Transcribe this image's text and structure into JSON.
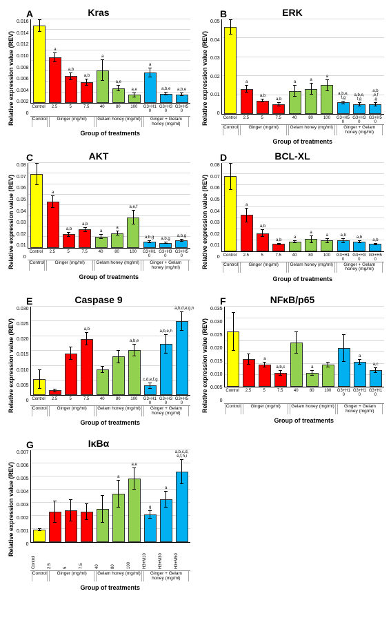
{
  "ylabel": "Relative expression value (REV)",
  "xlabel": "Group of treatments",
  "colors": {
    "control": "#ffff00",
    "ginger": "#ff0000",
    "honey": "#92d050",
    "combo": "#00b0f0",
    "grid": "#d9d9d9"
  },
  "groups": {
    "A": [
      {
        "label": "Control",
        "span": 1
      },
      {
        "label": "Ginger (mg/ml)",
        "span": 3
      },
      {
        "label": "Gelam honey (mg/ml)",
        "span": 3
      },
      {
        "label": "Ginger + Gelam honey\n(mg/ml)",
        "span": 3
      }
    ],
    "G": [
      {
        "label": "Control",
        "span": 1
      },
      {
        "label": "Ginger (mg/ml)",
        "span": 3
      },
      {
        "label": "Gelam honey (mg/ml)",
        "span": 3
      },
      {
        "label": "Ginger + Gelam honey (mg/ml)",
        "span": 3
      }
    ]
  },
  "charts": [
    {
      "id": "A",
      "letter": "A",
      "title": "Kras",
      "ymax": 0.016,
      "ystep": 0.002,
      "decimals": 3,
      "rot": false,
      "xticks": [
        "Control",
        "2.5",
        "5",
        "7.5",
        "40",
        "80",
        "100",
        "G3+H10",
        "G3+H30",
        "G3+H50"
      ],
      "bars": [
        {
          "v": 0.0128,
          "e": 0.001,
          "c": "control",
          "s": ""
        },
        {
          "v": 0.0075,
          "e": 0.0008,
          "c": "ginger",
          "s": "a"
        },
        {
          "v": 0.0044,
          "e": 0.0006,
          "c": "ginger",
          "s": "a,b"
        },
        {
          "v": 0.0034,
          "e": 0.0006,
          "c": "ginger",
          "s": "a,b"
        },
        {
          "v": 0.0054,
          "e": 0.0018,
          "c": "honey",
          "s": "a"
        },
        {
          "v": 0.0024,
          "e": 0.0005,
          "c": "honey",
          "s": "a,e"
        },
        {
          "v": 0.0013,
          "e": 0.0004,
          "c": "honey",
          "s": "a,e"
        },
        {
          "v": 0.005,
          "e": 0.0008,
          "c": "combo",
          "s": "a"
        },
        {
          "v": 0.0015,
          "e": 0.0003,
          "c": "combo",
          "s": "a,b,e"
        },
        {
          "v": 0.0014,
          "e": 0.0003,
          "c": "combo",
          "s": "a,b,e"
        }
      ]
    },
    {
      "id": "B",
      "letter": "B",
      "title": "ERK",
      "ymax": 0.05,
      "ystep": 0.01,
      "decimals": 2,
      "rot": false,
      "xticks": [
        "Control",
        "2.5",
        "5",
        "7.5",
        "40",
        "80",
        "100",
        "G3+H50",
        "G3+H30",
        "G3+H50"
      ],
      "bars": [
        {
          "v": 0.045,
          "e": 0.004,
          "c": "control",
          "s": ""
        },
        {
          "v": 0.013,
          "e": 0.002,
          "c": "ginger",
          "s": "a"
        },
        {
          "v": 0.007,
          "e": 0.001,
          "c": "ginger",
          "s": "a,b"
        },
        {
          "v": 0.005,
          "e": 0.001,
          "c": "ginger",
          "s": "a,b"
        },
        {
          "v": 0.012,
          "e": 0.003,
          "c": "honey",
          "s": "a"
        },
        {
          "v": 0.013,
          "e": 0.003,
          "c": "honey",
          "s": "a"
        },
        {
          "v": 0.015,
          "e": 0.003,
          "c": "honey",
          "s": "a"
        },
        {
          "v": 0.006,
          "e": 0.001,
          "c": "combo",
          "s": "a,b,e,\nf,g"
        },
        {
          "v": 0.005,
          "e": 0.001,
          "c": "combo",
          "s": "a,b,e,\nf,g"
        },
        {
          "v": 0.005,
          "e": 0.001,
          "c": "combo",
          "s": "a,b\n,e,f\n,g"
        }
      ]
    },
    {
      "id": "C",
      "letter": "C",
      "title": "AKT",
      "ymax": 0.08,
      "ystep": 0.01,
      "decimals": 2,
      "rot": false,
      "xticks": [
        "Control",
        "2.5",
        "5",
        "7.5",
        "40",
        "80",
        "100",
        "G3+H10",
        "G3+H30",
        "G3+H50"
      ],
      "bars": [
        {
          "v": 0.061,
          "e": 0.009,
          "c": "control",
          "s": ""
        },
        {
          "v": 0.038,
          "e": 0.005,
          "c": "ginger",
          "s": "a"
        },
        {
          "v": 0.011,
          "e": 0.002,
          "c": "ginger",
          "s": "a,b"
        },
        {
          "v": 0.015,
          "e": 0.002,
          "c": "ginger",
          "s": "a,b"
        },
        {
          "v": 0.009,
          "e": 0.002,
          "c": "honey",
          "s": "a"
        },
        {
          "v": 0.012,
          "e": 0.002,
          "c": "honey",
          "s": "a"
        },
        {
          "v": 0.025,
          "e": 0.006,
          "c": "honey",
          "s": "a,e,f"
        },
        {
          "v": 0.005,
          "e": 0.001,
          "c": "combo",
          "s": "a,b,g"
        },
        {
          "v": 0.004,
          "e": 0.001,
          "c": "combo",
          "s": "a,b,g"
        },
        {
          "v": 0.006,
          "e": 0.001,
          "c": "combo",
          "s": "a,b,g"
        }
      ]
    },
    {
      "id": "D",
      "letter": "D",
      "title": "BCL-XL",
      "ymax": 0.08,
      "ystep": 0.01,
      "decimals": 2,
      "rot": false,
      "xticks": [
        "Control",
        "2.5",
        "5",
        "7.5",
        "40",
        "80",
        "100",
        "G3+H10",
        "G3+H30",
        "G3+H50"
      ],
      "bars": [
        {
          "v": 0.062,
          "e": 0.011,
          "c": "control",
          "s": ""
        },
        {
          "v": 0.03,
          "e": 0.006,
          "c": "ginger",
          "s": "a"
        },
        {
          "v": 0.015,
          "e": 0.003,
          "c": "ginger",
          "s": "a,b"
        },
        {
          "v": 0.006,
          "e": 0.001,
          "c": "ginger",
          "s": "a,b"
        },
        {
          "v": 0.008,
          "e": 0.001,
          "c": "honey",
          "s": "a"
        },
        {
          "v": 0.01,
          "e": 0.003,
          "c": "honey",
          "s": "a"
        },
        {
          "v": 0.009,
          "e": 0.002,
          "c": "honey",
          "s": "a"
        },
        {
          "v": 0.009,
          "e": 0.002,
          "c": "combo",
          "s": "a,b"
        },
        {
          "v": 0.008,
          "e": 0.001,
          "c": "combo",
          "s": "a,b"
        },
        {
          "v": 0.006,
          "e": 0.001,
          "c": "combo",
          "s": "a,b"
        }
      ]
    },
    {
      "id": "E",
      "letter": "E",
      "title": "Caspase 9",
      "ymax": 0.03,
      "ystep": 0.005,
      "decimals": 3,
      "rot": false,
      "xticks": [
        "Control",
        "2.5",
        "5",
        "7.5",
        "40",
        "80",
        "100",
        "G3+H10",
        "G3+H30",
        "G3+H50"
      ],
      "bars": [
        {
          "v": 0.005,
          "e": 0.003,
          "c": "control",
          "s": ""
        },
        {
          "v": 0.0015,
          "e": 0.0005,
          "c": "ginger",
          "s": ""
        },
        {
          "v": 0.013,
          "e": 0.002,
          "c": "ginger",
          "s": ""
        },
        {
          "v": 0.0175,
          "e": 0.002,
          "c": "ginger",
          "s": "a,b"
        },
        {
          "v": 0.008,
          "e": 0.001,
          "c": "honey",
          "s": ""
        },
        {
          "v": 0.012,
          "e": 0.002,
          "c": "honey",
          "s": ""
        },
        {
          "v": 0.014,
          "e": 0.002,
          "c": "honey",
          "s": "a,b,e"
        },
        {
          "v": 0.003,
          "e": 0.001,
          "c": "combo",
          "s": "c,d,e,f,g"
        },
        {
          "v": 0.016,
          "e": 0.003,
          "c": "combo",
          "s": "a,b,e,h"
        },
        {
          "v": 0.023,
          "e": 0.003,
          "c": "combo",
          "s": "a,b,d,e,g,h"
        }
      ]
    },
    {
      "id": "F",
      "letter": "F",
      "title": "NFκB/p65",
      "ymax": 0.035,
      "ystep": 0.005,
      "decimals": 3,
      "rot": false,
      "xticks": [
        "Control",
        "2.5",
        "5",
        "7.5",
        "40",
        "80",
        "100",
        "G3+H10",
        "G3+H10",
        "G3+H10"
      ],
      "bars": [
        {
          "v": 0.02,
          "e": 0.007,
          "c": "control",
          "s": ""
        },
        {
          "v": 0.01,
          "e": 0.002,
          "c": "ginger",
          "s": ""
        },
        {
          "v": 0.008,
          "e": 0.001,
          "c": "ginger",
          "s": "a"
        },
        {
          "v": 0.005,
          "e": 0.001,
          "c": "ginger",
          "s": "a,b,c"
        },
        {
          "v": 0.016,
          "e": 0.004,
          "c": "honey",
          "s": ""
        },
        {
          "v": 0.005,
          "e": 0.001,
          "c": "honey",
          "s": "a"
        },
        {
          "v": 0.008,
          "e": 0.001,
          "c": "honey",
          "s": ""
        },
        {
          "v": 0.014,
          "e": 0.005,
          "c": "combo",
          "s": ""
        },
        {
          "v": 0.009,
          "e": 0.001,
          "c": "combo",
          "s": "a"
        },
        {
          "v": 0.006,
          "e": 0.001,
          "c": "combo",
          "s": "a,c"
        }
      ]
    },
    {
      "id": "G",
      "letter": "G",
      "title": "IκBα",
      "ymax": 0.007,
      "ystep": 0.001,
      "decimals": 3,
      "rot": true,
      "xticks": [
        "Control",
        "2.5",
        "5",
        "7.5",
        "40",
        "80",
        "100",
        "H3+M10",
        "H3+M30",
        "H3+M50"
      ],
      "bars": [
        {
          "v": 0.0009,
          "e": 0.0001,
          "c": "control",
          "s": ""
        },
        {
          "v": 0.0022,
          "e": 0.0008,
          "c": "ginger",
          "s": ""
        },
        {
          "v": 0.0023,
          "e": 0.0008,
          "c": "ginger",
          "s": ""
        },
        {
          "v": 0.0022,
          "e": 0.0006,
          "c": "ginger",
          "s": ""
        },
        {
          "v": 0.0024,
          "e": 0.001,
          "c": "honey",
          "s": ""
        },
        {
          "v": 0.0035,
          "e": 0.001,
          "c": "honey",
          "s": "a"
        },
        {
          "v": 0.0046,
          "e": 0.0008,
          "c": "honey",
          "s": "a,e"
        },
        {
          "v": 0.002,
          "e": 0.0003,
          "c": "combo",
          "s": "g"
        },
        {
          "v": 0.0031,
          "e": 0.0006,
          "c": "combo",
          "s": "a"
        },
        {
          "v": 0.0051,
          "e": 0.0009,
          "c": "combo",
          "s": "a,b,c,d,\ne,f,h,i"
        }
      ]
    }
  ]
}
